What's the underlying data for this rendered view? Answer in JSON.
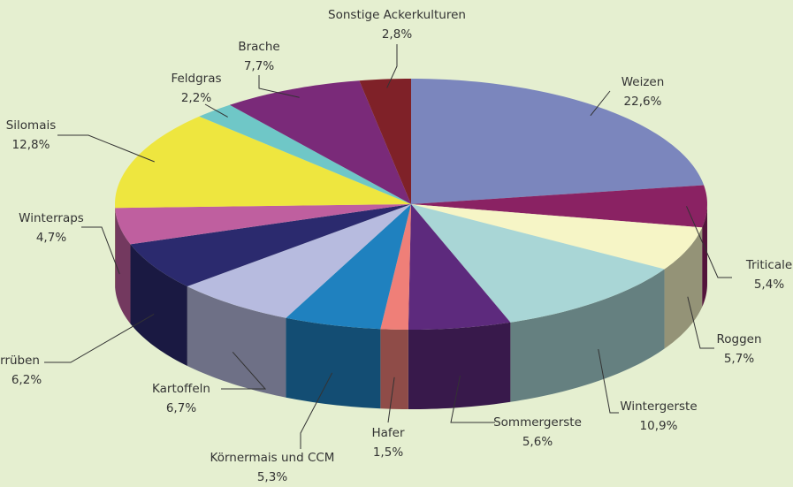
{
  "chart_data": {
    "type": "pie3d",
    "categories": [
      "Weizen",
      "Triticale",
      "Roggen",
      "Wintergerste",
      "Sommergerste",
      "Hafer",
      "Körnermais und CCM",
      "Kartoffeln",
      "Zuckerrüben",
      "Winterraps",
      "Silomais",
      "Feldgras",
      "Brache",
      "Sonstige Ackerkulturen"
    ],
    "values": [
      22.6,
      5.4,
      5.7,
      10.9,
      5.6,
      1.5,
      5.3,
      6.7,
      6.2,
      4.7,
      12.8,
      2.2,
      7.7,
      2.8
    ],
    "value_labels": [
      "22,6%",
      "5,4%",
      "5,7%",
      "10,9%",
      "5,6%",
      "1,5%",
      "5,3%",
      "6,7%",
      "6,2%",
      "4,7%",
      "12,8%",
      "2,2%",
      "7,7%",
      "2,8%"
    ],
    "colors": [
      "#7b86bd",
      "#8a2263",
      "#f6f5c6",
      "#a9d6d6",
      "#5d2a7d",
      "#ef7f78",
      "#1f81bf",
      "#b7bbdf",
      "#2b2a6e",
      "#bf5f9f",
      "#eee63f",
      "#6fc7c7",
      "#7a2a79",
      "#7f2128"
    ]
  }
}
